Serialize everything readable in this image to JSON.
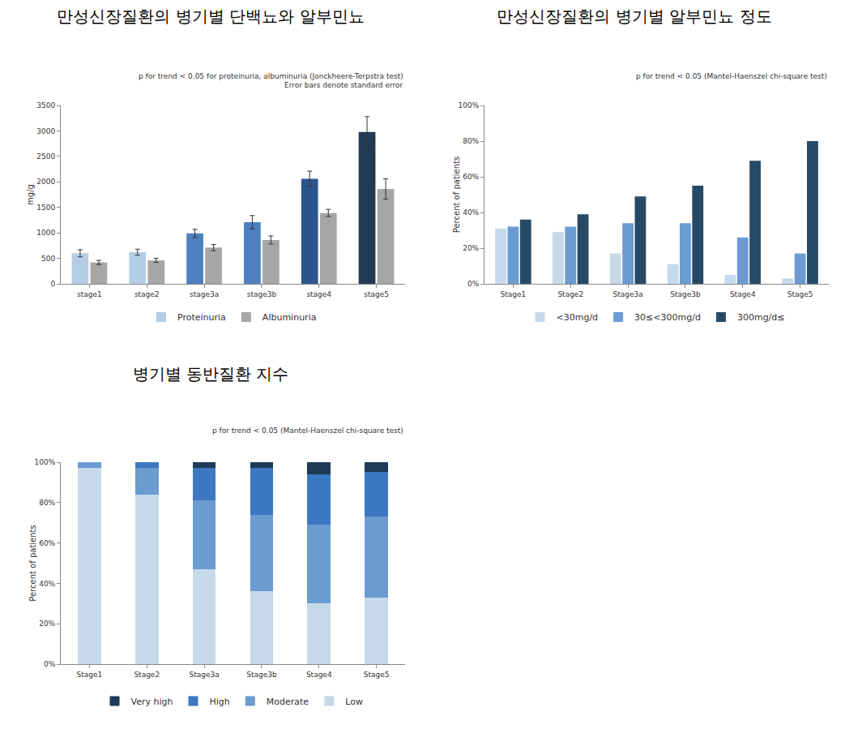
{
  "chart_data": [
    {
      "type": "bar",
      "title": "만성신장질환의 병기별 단백뇨와 알부민뇨",
      "annotations": [
        "p for trend < 0.05 for proteinuria, albuminuria (Jonckheere-Terpstra test)",
        "Error bars denote standard error"
      ],
      "y_label": "mg/g",
      "categories": [
        "stage1",
        "stage2",
        "stage3a",
        "stage3b",
        "stage4",
        "stage5"
      ],
      "series": [
        {
          "name": "Proteinuria",
          "colors": [
            "#b4cde6",
            "#b4cde6",
            "#4f7fc0",
            "#4f7fc0",
            "#2b568c",
            "#213b55"
          ],
          "values": [
            600,
            620,
            990,
            1210,
            2060,
            2980
          ],
          "error": [
            70,
            60,
            80,
            130,
            150,
            300
          ]
        },
        {
          "name": "Albuminuria",
          "color": "#a6a6a6",
          "values": [
            420,
            460,
            710,
            860,
            1390,
            1860
          ],
          "error": [
            40,
            40,
            60,
            80,
            70,
            200
          ]
        }
      ],
      "ylim": [
        0,
        3500
      ],
      "yticks": [
        0,
        500,
        1000,
        1500,
        2000,
        2500,
        3000,
        3500
      ],
      "grid": false,
      "legend": "bottom",
      "stacked": false
    },
    {
      "type": "bar",
      "title": "만성신장질환의 병기별 알부민뇨 정도",
      "annotations": [
        "p for trend < 0.05 (Mantel-Haenszel chi-square test)"
      ],
      "y_label": "Percent of patients",
      "categories": [
        "Stage1",
        "Stage2",
        "Stage3a",
        "Stage3b",
        "Stage4",
        "Stage5"
      ],
      "series": [
        {
          "name": "<30mg/d",
          "color": "#c6d9ea",
          "values": [
            31,
            29,
            17,
            11,
            5,
            3
          ]
        },
        {
          "name": "30≤<300mg/d",
          "color": "#6b9bd1",
          "values": [
            32,
            32,
            34,
            34,
            26,
            17
          ]
        },
        {
          "name": "300mg/d≤",
          "color": "#264a66",
          "values": [
            36,
            39,
            49,
            55,
            69,
            80
          ]
        }
      ],
      "ylim": [
        0,
        100
      ],
      "yticks": [
        {
          "value": 0,
          "label": "0%"
        },
        {
          "value": 20,
          "label": "20%"
        },
        {
          "value": 40,
          "label": "40%"
        },
        {
          "value": 60,
          "label": "60%"
        },
        {
          "value": 80,
          "label": "80%"
        },
        {
          "value": 100,
          "label": "100%"
        }
      ],
      "grid": false,
      "legend": "bottom",
      "stacked": false
    },
    {
      "type": "bar",
      "title": "병기별 동반질환 지수",
      "annotations": [
        "p for trend < 0.05 (Mantel-Haenszel chi-square test)"
      ],
      "y_label": "Percent of patients",
      "categories": [
        "Stage1",
        "Stage2",
        "Stage3a",
        "Stage3b",
        "Stage4",
        "Stage5"
      ],
      "series": [
        {
          "name": "Low",
          "color": "#c6d9ea",
          "values": [
            97,
            84,
            47,
            36,
            30,
            33
          ]
        },
        {
          "name": "Moderate",
          "color": "#6b9bd1",
          "values": [
            3,
            13,
            34,
            38,
            39,
            40
          ]
        },
        {
          "name": "High",
          "color": "#3b78c0",
          "values": [
            0,
            3,
            16,
            23,
            25,
            22
          ]
        },
        {
          "name": "Very high",
          "color": "#1f3a56",
          "values": [
            0,
            0,
            3,
            3,
            6,
            5
          ]
        }
      ],
      "ylim": [
        0,
        100
      ],
      "yticks": [
        {
          "value": 0,
          "label": "0%"
        },
        {
          "value": 20,
          "label": "20%"
        },
        {
          "value": 40,
          "label": "40%"
        },
        {
          "value": 60,
          "label": "60%"
        },
        {
          "value": 80,
          "label": "80%"
        },
        {
          "value": 100,
          "label": "100%"
        }
      ],
      "grid": false,
      "legend": "bottom",
      "stacked": true
    }
  ]
}
